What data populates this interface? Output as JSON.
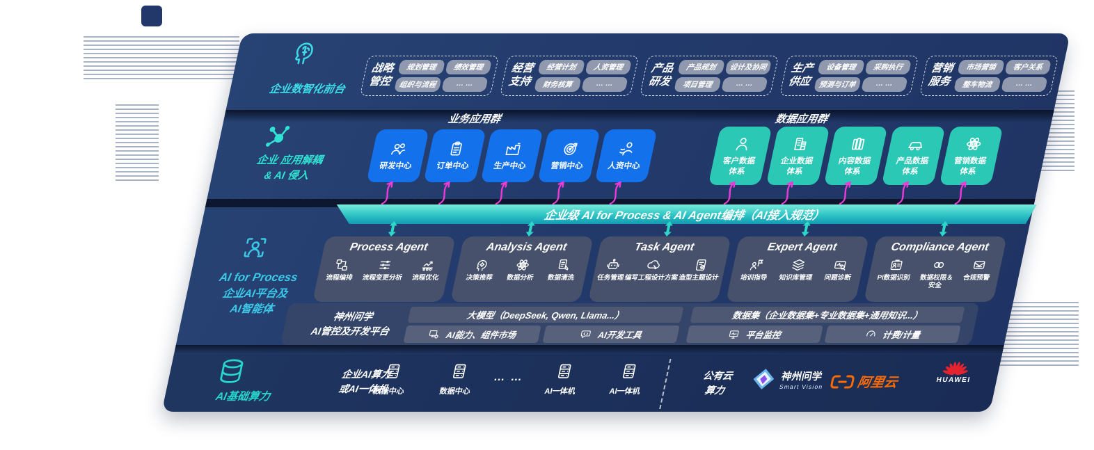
{
  "colors": {
    "navy": "#22386B",
    "blue": "#1371EB",
    "teal": "#2CC8B6",
    "cyan": "#3EDCE9",
    "magenta": "#ED3BD8",
    "banner_teal": "#2CC4C4",
    "aliyun_orange": "#FF6A00",
    "huawei_red": "#E4232E"
  },
  "front_stage": {
    "label": "企业数智化前台",
    "icon": "brain-head-icon",
    "groups": [
      {
        "name": "战略\n管控",
        "items": [
          "规划管理",
          "绩效管理",
          "组织与流程",
          "… …"
        ]
      },
      {
        "name": "经营\n支持",
        "items": [
          "经营计划",
          "人资管理",
          "财务核算",
          "… …"
        ]
      },
      {
        "name": "产品\n研发",
        "items": [
          "产品规划",
          "设计及协同",
          "项目管理",
          "… …"
        ]
      },
      {
        "name": "生产\n供应",
        "items": [
          "设备管理",
          "采购执行",
          "预测与订单",
          "… …"
        ]
      },
      {
        "name": "营销\n服务",
        "items": [
          "市场营销",
          "客户关系",
          "整车物流",
          "… …"
        ]
      }
    ]
  },
  "app_layer": {
    "label_line1": "企业 应用解耦",
    "label_line2": "& AI 侵入",
    "icon": "molecule-icon",
    "business_group": {
      "title": "业务应用群",
      "apps": [
        {
          "label": "研发中心",
          "icon": "people-icon"
        },
        {
          "label": "订单中心",
          "icon": "clipboard-icon"
        },
        {
          "label": "生产中心",
          "icon": "factory-icon"
        },
        {
          "label": "营销中心",
          "icon": "target-icon"
        },
        {
          "label": "人资中心",
          "icon": "person-arrows-icon"
        }
      ]
    },
    "data_group": {
      "title": "数据应用群",
      "apps": [
        {
          "label": "客户数据\n体系",
          "icon": "person-icon"
        },
        {
          "label": "企业数据\n体系",
          "icon": "building-icon"
        },
        {
          "label": "内容数据\n体系",
          "icon": "books-icon"
        },
        {
          "label": "产品数据\n体系",
          "icon": "car-icon"
        },
        {
          "label": "营销数据\n体系",
          "icon": "atom-icon"
        }
      ]
    }
  },
  "orchestration_bar": {
    "text": "企业级 AI for Process & AI Agent编排（AI接入规范）"
  },
  "ai_layer": {
    "label_line1": "AI for Process",
    "label_line2": "企业AI平台及",
    "label_line3": "AI智能体",
    "icon": "scan-person-icon",
    "agents": [
      {
        "title": "Process Agent",
        "items": [
          {
            "label": "流程编排",
            "icon": "flow-icon"
          },
          {
            "label": "流程变更分析",
            "icon": "sliders-icon"
          },
          {
            "label": "流程优化",
            "icon": "conveyor-icon"
          }
        ]
      },
      {
        "title": "Analysis Agent",
        "items": [
          {
            "label": "决策推荐",
            "icon": "head-gear-icon"
          },
          {
            "label": "数据分析",
            "icon": "atom-icon"
          },
          {
            "label": "数据清洗",
            "icon": "doc-clean-icon"
          }
        ]
      },
      {
        "title": "Task Agent",
        "items": [
          {
            "label": "任务管理",
            "icon": "robot-icon"
          },
          {
            "label": "编写工程设计方案",
            "icon": "cloud-gear-icon"
          },
          {
            "label": "造型主题设计",
            "icon": "checklist-icon"
          }
        ]
      },
      {
        "title": "Expert Agent",
        "items": [
          {
            "label": "培训指导",
            "icon": "teach-icon"
          },
          {
            "label": "知识库管理",
            "icon": "layers-icon"
          },
          {
            "label": "问题诊断",
            "icon": "diagnose-icon"
          }
        ]
      },
      {
        "title": "Compliance Agent",
        "items": [
          {
            "label": "PI数据识别",
            "icon": "id-card-icon"
          },
          {
            "label": "数据权限＆\n安全",
            "icon": "link-icon"
          },
          {
            "label": "合规预警",
            "icon": "mail-icon"
          }
        ]
      }
    ],
    "platform": {
      "label_line1": "神州问学",
      "label_line2": "AI管控及开发平台",
      "model_bar": "大模型（DeepSeek, Qwen, Llama...）",
      "dataset_bar": "数据集（企业数据集+专业数据集+通用知识...）",
      "tools": [
        {
          "label": "AI能力、组件市场",
          "icon": "ai-market-icon"
        },
        {
          "label": "AI开发工具",
          "icon": "ai-tools-icon"
        },
        {
          "label": "平台监控",
          "icon": "monitor-icon"
        },
        {
          "label": "计费/计量",
          "icon": "gauge-icon"
        }
      ]
    }
  },
  "infra_layer": {
    "label": "AI基础算力",
    "icon": "database-icon",
    "compute_label": "企业AI算力\n或AI一体机",
    "nodes": [
      {
        "label": "数据中心",
        "icon": "server-icon"
      },
      {
        "label": "数据中心",
        "icon": "server-icon"
      },
      {
        "label": "… …"
      },
      {
        "label": "AI一体机",
        "icon": "server-icon"
      },
      {
        "label": "AI一体机",
        "icon": "server-icon"
      }
    ],
    "public_cloud": "公有云\n算力",
    "logos": [
      {
        "name": "shenzhou-wenxue-logo",
        "text": "神州问学",
        "subtext": "Smart Vision"
      },
      {
        "name": "aliyun-logo",
        "text": "阿里云"
      },
      {
        "name": "huawei-logo",
        "text": "HUAWEI"
      }
    ]
  }
}
